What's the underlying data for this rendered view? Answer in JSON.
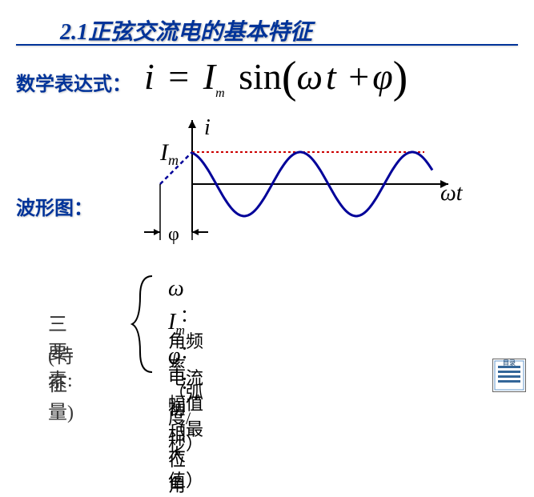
{
  "title": "2.1正弦交流电的基本特征",
  "labels": {
    "math_expr": "数学表达式：",
    "waveform": "波形图：",
    "three_elements": "三要素:",
    "feature_qty": "(特征量)"
  },
  "formula": {
    "lhs": "i",
    "eq": "=",
    "Im_I": "I",
    "Im_m": "m",
    "sin": "sin",
    "lparen": "(",
    "omega": "ω",
    "t": "t",
    "plus": "+",
    "phi": "φ",
    "rparen": ")"
  },
  "waveform": {
    "axis_i": "i",
    "axis_Im_I": "I",
    "axis_Im_m": "m",
    "axis_wt": "ωt",
    "phi_label": "φ",
    "sine_color": "#000099",
    "amplitude_line_color": "#cc0000",
    "axis_color": "#000000",
    "phase_shift": -40,
    "amplitude": 40,
    "period": 140,
    "cycles": 2.5
  },
  "elements": [
    {
      "symbol": "ω",
      "sub": "",
      "desc": "：角频率（弧度/秒）"
    },
    {
      "symbol": "I",
      "sub": "m",
      "desc": "：电流幅值（最大值）"
    },
    {
      "symbol": "φ",
      "sub": "",
      "desc": "： 初相位角"
    }
  ],
  "colors": {
    "title_color": "#003399",
    "text_color": "#000000",
    "background": "#ffffff"
  }
}
